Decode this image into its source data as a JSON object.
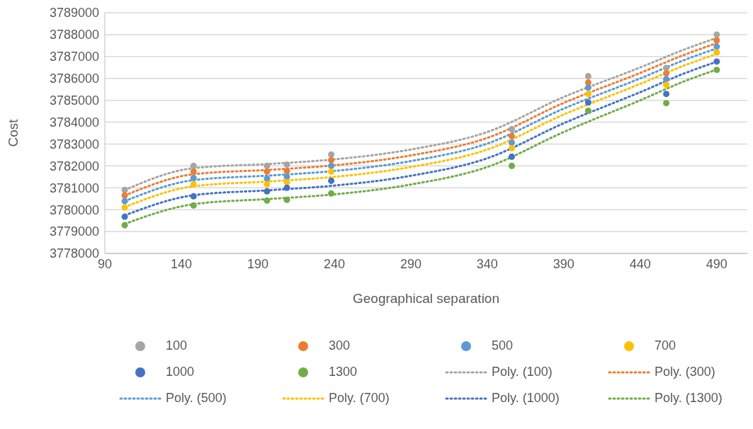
{
  "chart_data": {
    "type": "scatter",
    "xlabel": "Geographical separation",
    "ylabel": "Cost",
    "xlim": [
      90,
      510
    ],
    "xticks": [
      90,
      140,
      190,
      240,
      290,
      340,
      390,
      440,
      490
    ],
    "ylim": [
      3778000,
      3789000
    ],
    "yticks": [
      3778000,
      3779000,
      3780000,
      3781000,
      3782000,
      3783000,
      3784000,
      3785000,
      3786000,
      3787000,
      3788000,
      3789000
    ],
    "grid": "y",
    "legend": "bottom",
    "marker": "circle",
    "x": [
      103,
      148,
      196,
      209,
      238,
      356,
      406,
      457,
      490
    ],
    "series": [
      {
        "name": "100",
        "color": "#a5a5a5",
        "values": [
          3780900,
          3782000,
          3782000,
          3782060,
          3782520,
          3783680,
          3786100,
          3786480,
          3788000
        ]
      },
      {
        "name": "300",
        "color": "#ed7d31",
        "values": [
          3780650,
          3781740,
          3781740,
          3781770,
          3782260,
          3783360,
          3785810,
          3786230,
          3787740
        ]
      },
      {
        "name": "500",
        "color": "#5b9bd5",
        "values": [
          3780390,
          3781450,
          3781420,
          3781500,
          3782000,
          3783060,
          3785580,
          3785970,
          3787450
        ]
      },
      {
        "name": "700",
        "color": "#ffc000",
        "values": [
          3780100,
          3781160,
          3781160,
          3781250,
          3781740,
          3782810,
          3785290,
          3785710,
          3787190
        ]
      },
      {
        "name": "1000",
        "color": "#4472c4",
        "values": [
          3779680,
          3780610,
          3780840,
          3781000,
          3781320,
          3782420,
          3784900,
          3785290,
          3786770
        ]
      },
      {
        "name": "1300",
        "color": "#70ad47",
        "values": [
          3779290,
          3780190,
          3780420,
          3780450,
          3780740,
          3782000,
          3784520,
          3784870,
          3786390
        ]
      },
      {
        "name": "Poly. (100)",
        "type": "line",
        "line_style": "dotted",
        "marker": "none",
        "color": "#a5a5a5",
        "x": [
          103,
          148,
          200,
          240,
          290,
          340,
          390,
          440,
          470,
          490
        ],
        "values": [
          3780900,
          3781900,
          3782100,
          3782300,
          3782750,
          3783550,
          3785150,
          3786500,
          3787350,
          3787850
        ]
      },
      {
        "name": "Poly. (300)",
        "type": "line",
        "line_style": "dotted",
        "marker": "none",
        "color": "#ed7d31",
        "x": [
          103,
          148,
          200,
          240,
          290,
          340,
          390,
          440,
          470,
          490
        ],
        "values": [
          3780650,
          3781620,
          3781830,
          3782030,
          3782480,
          3783280,
          3784880,
          3786250,
          3787110,
          3787610
        ]
      },
      {
        "name": "Poly. (500)",
        "type": "line",
        "line_style": "dotted",
        "marker": "none",
        "color": "#5b9bd5",
        "x": [
          103,
          148,
          200,
          240,
          290,
          340,
          390,
          440,
          470,
          490
        ],
        "values": [
          3780390,
          3781350,
          3781570,
          3781770,
          3782220,
          3783020,
          3784620,
          3786000,
          3786870,
          3787370
        ]
      },
      {
        "name": "Poly. (700)",
        "type": "line",
        "line_style": "dotted",
        "marker": "none",
        "color": "#ffc000",
        "x": [
          103,
          148,
          200,
          240,
          290,
          340,
          390,
          440,
          470,
          490
        ],
        "values": [
          3780120,
          3781070,
          3781300,
          3781500,
          3781950,
          3782750,
          3784350,
          3785750,
          3786620,
          3787120
        ]
      },
      {
        "name": "Poly. (1000)",
        "type": "line",
        "line_style": "dotted",
        "marker": "none",
        "color": "#4472c4",
        "x": [
          103,
          148,
          200,
          240,
          290,
          340,
          390,
          440,
          470,
          490
        ],
        "values": [
          3779740,
          3780660,
          3780900,
          3781100,
          3781550,
          3782350,
          3783950,
          3785370,
          3786260,
          3786760
        ]
      },
      {
        "name": "Poly. (1300)",
        "type": "line",
        "line_style": "dotted",
        "marker": "none",
        "color": "#70ad47",
        "x": [
          103,
          148,
          200,
          240,
          290,
          340,
          390,
          440,
          470,
          490
        ],
        "values": [
          3779350,
          3780250,
          3780500,
          3780700,
          3781150,
          3781950,
          3783550,
          3785000,
          3785900,
          3786400
        ]
      }
    ]
  }
}
